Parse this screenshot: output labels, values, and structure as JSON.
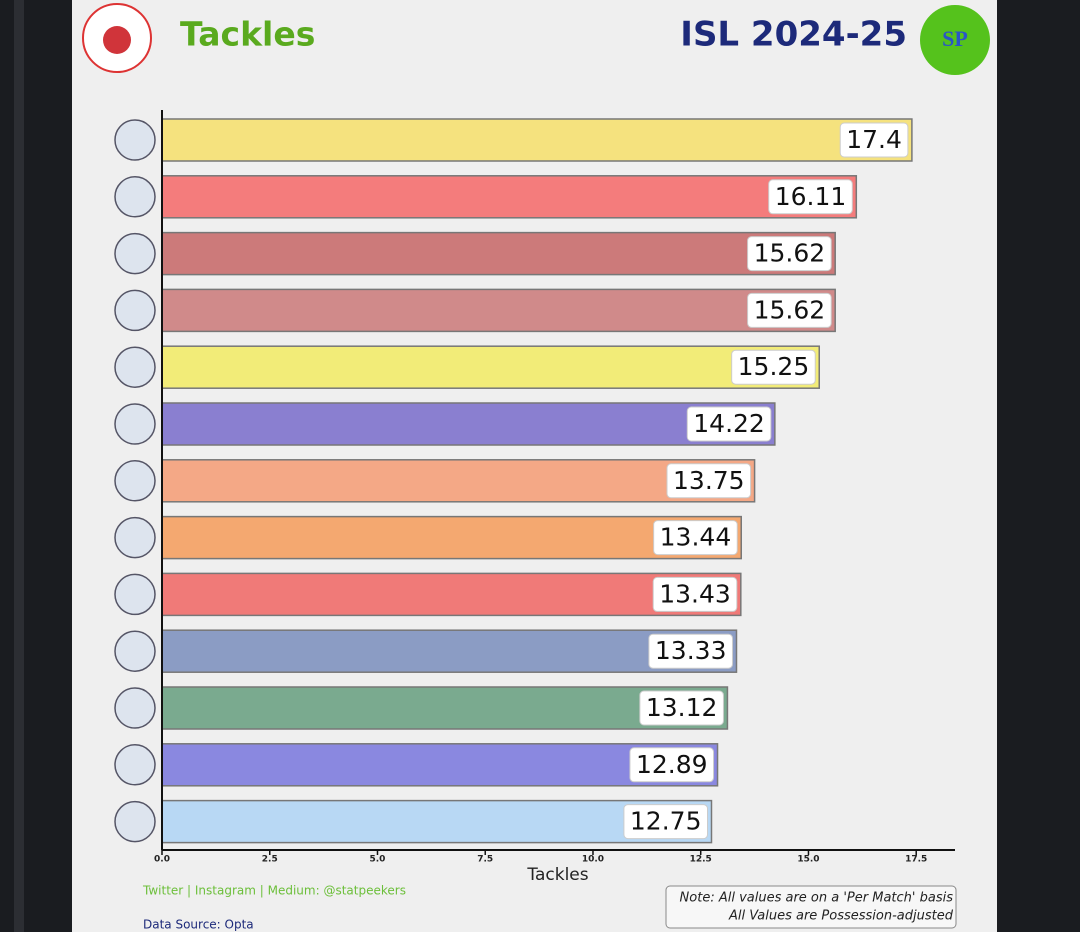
{
  "chart_data": {
    "type": "barh",
    "title": "Tackles",
    "subtitle": "ISL 2024-25",
    "brand": "SP",
    "x_label": "Tackles",
    "footer": "Twitter | Instagram | Medium: @statpeekers",
    "source": "Data Source: Opta",
    "notes": [
      "Note: All values are on a 'Per Match' basis",
      "All Values are Possession-adjusted"
    ],
    "values": [
      17.4,
      16.11,
      15.62,
      15.62,
      15.25,
      14.22,
      13.75,
      13.44,
      13.43,
      13.33,
      13.12,
      12.89,
      12.75
    ],
    "colors": [
      "#f5e27e",
      "#f47c7c",
      "#cc7a7a",
      "#d08a8a",
      "#f2ec78",
      "#8a7fd0",
      "#f4a886",
      "#f4a870",
      "#f07a78",
      "#8b9cc4",
      "#7aaa8f",
      "#8a88e0",
      "#b8d8f4"
    ],
    "xlim": [
      0,
      18.4
    ],
    "xticks": [
      {
        "value": 0,
        "label": "0.0"
      },
      {
        "value": 2.5,
        "label": "2.5"
      },
      {
        "value": 5,
        "label": "5.0"
      },
      {
        "value": 7.5,
        "label": "7.5"
      },
      {
        "value": 10,
        "label": "10.0"
      },
      {
        "value": 12.5,
        "label": "12.5"
      },
      {
        "value": 15,
        "label": "15.0"
      },
      {
        "value": 17.5,
        "label": "17.5"
      }
    ]
  }
}
